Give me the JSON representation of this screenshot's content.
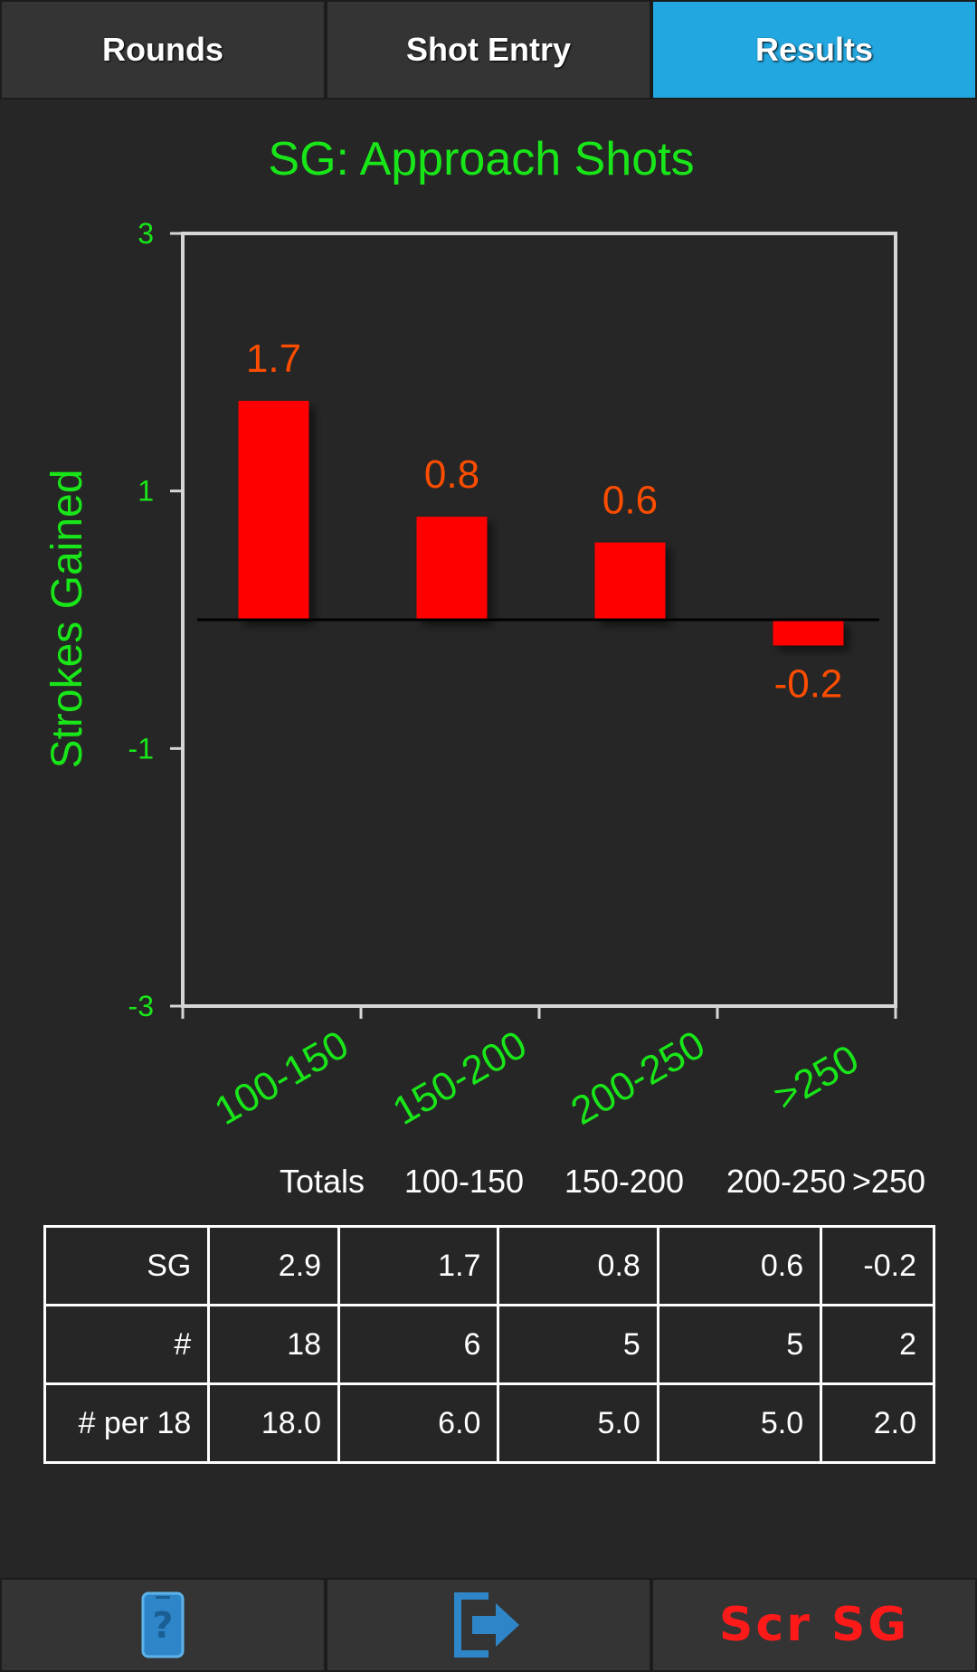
{
  "tabs": [
    {
      "label": "Rounds",
      "active": false
    },
    {
      "label": "Shot Entry",
      "active": false
    },
    {
      "label": "Results",
      "active": true
    }
  ],
  "chart_data": {
    "type": "bar",
    "title": "SG: Approach Shots",
    "ylabel": "Strokes Gained",
    "xlabel": "",
    "categories": [
      "100-150",
      "150-200",
      "200-250",
      ">250"
    ],
    "values": [
      1.7,
      0.8,
      0.6,
      -0.2
    ],
    "data_labels": [
      "1.7",
      "0.8",
      "0.6",
      "-0.2"
    ],
    "yticks": [
      3,
      1,
      -1,
      -3
    ],
    "ylim": [
      -3,
      3
    ],
    "grid": false,
    "bar_color": "#ff0000",
    "label_color": "#ff4d00",
    "axis_text_color": "#19e619"
  },
  "table": {
    "headers": [
      "Totals",
      "100-150",
      "150-200",
      "200-250",
      ">250"
    ],
    "rows": [
      {
        "label": "SG",
        "cells": [
          "2.9",
          "1.7",
          "0.8",
          "0.6",
          "-0.2"
        ]
      },
      {
        "label": "#",
        "cells": [
          "18",
          "6",
          "5",
          "5",
          "2"
        ]
      },
      {
        "label": "# per 18",
        "cells": [
          "18.0",
          "6.0",
          "5.0",
          "5.0",
          "2.0"
        ]
      }
    ]
  },
  "bottom_bar": {
    "help_icon": "help-tablet-icon",
    "exit_icon": "exit-arrow-icon",
    "scr_sg_label": "Scr SG"
  }
}
